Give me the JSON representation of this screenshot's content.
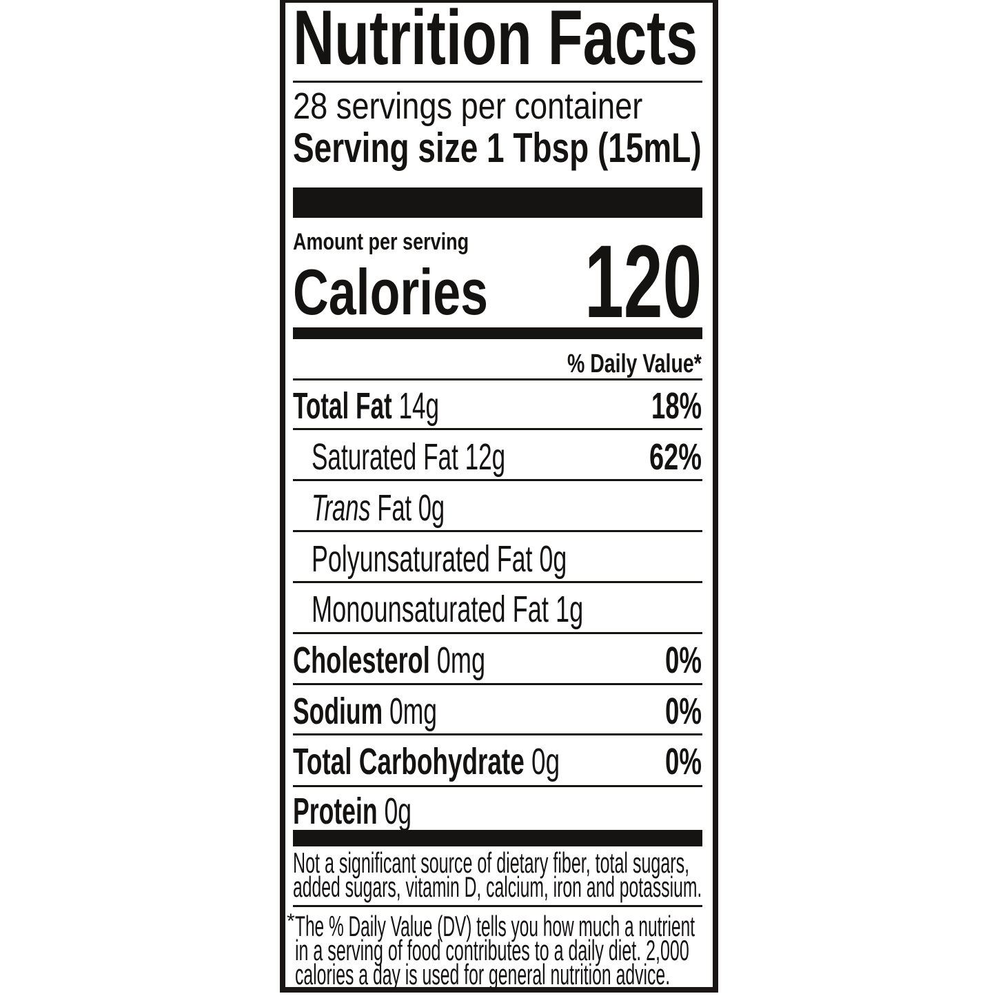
{
  "title": "Nutrition Facts",
  "servings_per_container": "28 servings per container",
  "serving_size_label": "Serving size",
  "serving_size_value": "1 Tbsp (15mL)",
  "amount_per_serving": "Amount per serving",
  "calories_label": "Calories",
  "calories_value": "120",
  "daily_value_header": "% Daily Value*",
  "nutrients": [
    {
      "name": "Total Fat",
      "amount": "14g",
      "dv": "18%"
    },
    {
      "name": "Saturated Fat",
      "amount": "12g",
      "dv": "62%"
    },
    {
      "name_italic": "Trans",
      "name": "Fat",
      "amount": "0g"
    },
    {
      "name": "Polyunsaturated Fat",
      "amount": "0g"
    },
    {
      "name": "Monounsaturated Fat",
      "amount": "1g"
    },
    {
      "name": "Cholesterol",
      "amount": "0mg",
      "dv": "0%"
    },
    {
      "name": "Sodium",
      "amount": "0mg",
      "dv": "0%"
    },
    {
      "name": "Total Carbohydrate",
      "amount": "0g",
      "dv": "0%"
    },
    {
      "name": "Protein",
      "amount": "0g"
    }
  ],
  "not_significant": [
    "Not a significant source of dietary fiber, total sugars,",
    "added sugars, vitamin D, calcium, iron and potassium."
  ],
  "footnote_asterisk": "*",
  "footnote": [
    "The % Daily Value (DV) tells you how much a nutrient",
    "in a serving of food contributes to a daily diet. 2,000",
    "calories a day is used for general nutrition advice."
  ]
}
